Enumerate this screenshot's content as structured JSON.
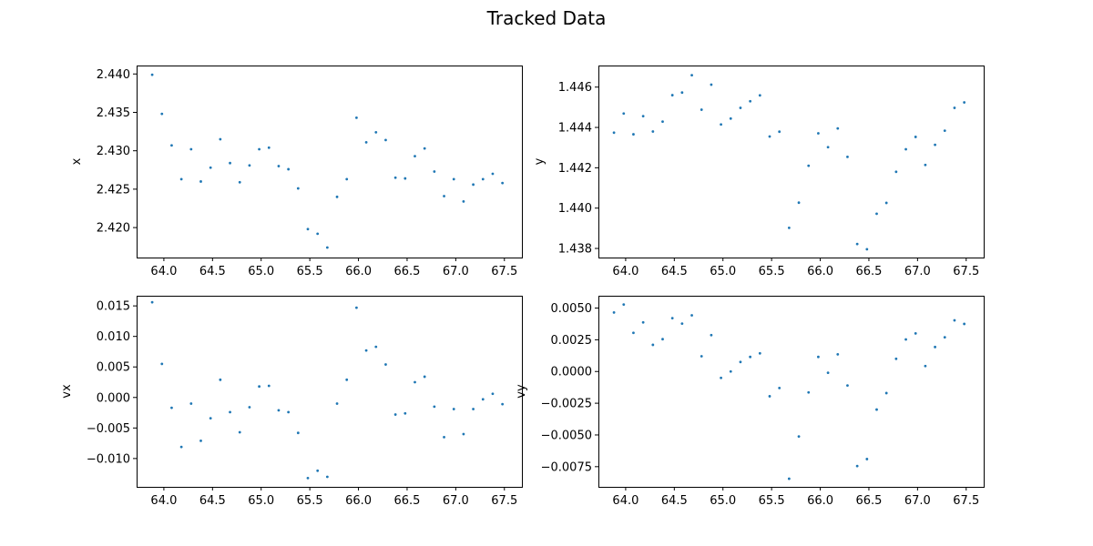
{
  "figure": {
    "title": "Tracked Data"
  },
  "chart_data": [
    {
      "type": "scatter",
      "xlabel": "",
      "ylabel": "x",
      "xlim": [
        63.72,
        67.68
      ],
      "ylim": [
        2.4161,
        2.4411
      ],
      "xticks": [
        64.0,
        64.5,
        65.0,
        65.5,
        66.0,
        66.5,
        67.0,
        67.5
      ],
      "xtick_labels": [
        "64.0",
        "64.5",
        "65.0",
        "65.5",
        "66.0",
        "66.5",
        "67.0",
        "67.5"
      ],
      "yticks": [
        2.42,
        2.425,
        2.43,
        2.435,
        2.44
      ],
      "ytick_labels": [
        "2.420",
        "2.425",
        "2.430",
        "2.435",
        "2.440"
      ],
      "x": [
        63.88,
        63.98,
        64.08,
        64.18,
        64.28,
        64.38,
        64.48,
        64.58,
        64.68,
        64.78,
        64.88,
        64.98,
        65.08,
        65.18,
        65.28,
        65.38,
        65.48,
        65.58,
        65.68,
        65.78,
        65.88,
        65.98,
        66.08,
        66.18,
        66.28,
        66.38,
        66.48,
        66.58,
        66.68,
        66.78,
        66.88,
        66.98,
        67.08,
        67.18,
        67.28,
        67.38,
        67.48
      ],
      "y": [
        2.4399,
        2.4348,
        2.4307,
        2.4263,
        2.4302,
        2.426,
        2.4278,
        2.4315,
        2.4284,
        2.4259,
        2.4281,
        2.4302,
        2.4304,
        2.428,
        2.4276,
        2.4251,
        2.4198,
        2.4192,
        2.4174,
        2.424,
        2.4263,
        2.4343,
        2.4311,
        2.4324,
        2.4314,
        2.4265,
        2.4264,
        2.4293,
        2.4303,
        2.4273,
        2.4241,
        2.4263,
        2.4234,
        2.4256,
        2.4263,
        2.427,
        2.4258
      ]
    },
    {
      "type": "scatter",
      "xlabel": "",
      "ylabel": "y",
      "xlim": [
        63.72,
        67.68
      ],
      "ylim": [
        1.43755,
        1.44707
      ],
      "xticks": [
        64.0,
        64.5,
        65.0,
        65.5,
        66.0,
        66.5,
        67.0,
        67.5
      ],
      "xtick_labels": [
        "64.0",
        "64.5",
        "65.0",
        "65.5",
        "66.0",
        "66.5",
        "67.0",
        "67.5"
      ],
      "yticks": [
        1.438,
        1.44,
        1.442,
        1.444,
        1.446
      ],
      "ytick_labels": [
        "1.438",
        "1.440",
        "1.442",
        "1.444",
        "1.446"
      ],
      "x": [
        63.88,
        63.98,
        64.08,
        64.18,
        64.28,
        64.38,
        64.48,
        64.58,
        64.68,
        64.78,
        64.88,
        64.98,
        65.08,
        65.18,
        65.28,
        65.38,
        65.48,
        65.58,
        65.68,
        65.78,
        65.88,
        65.98,
        66.08,
        66.18,
        66.28,
        66.38,
        66.48,
        66.58,
        66.68,
        66.78,
        66.88,
        66.98,
        67.08,
        67.18,
        67.28,
        67.38,
        67.48
      ],
      "y": [
        1.44374,
        1.44469,
        1.44366,
        1.44456,
        1.4438,
        1.44429,
        1.4456,
        1.44573,
        1.44659,
        1.44488,
        1.44612,
        1.44415,
        1.44444,
        1.44497,
        1.4453,
        1.44559,
        1.44355,
        1.44379,
        1.43902,
        1.44027,
        1.4421,
        1.44371,
        1.44302,
        1.44395,
        1.44254,
        1.43822,
        1.43796,
        1.43972,
        1.44026,
        1.4418,
        1.44292,
        1.44353,
        1.44214,
        1.44314,
        1.44384,
        1.44497,
        1.44524
      ]
    },
    {
      "type": "scatter",
      "xlabel": "",
      "ylabel": "vx",
      "xlim": [
        63.72,
        67.68
      ],
      "ylim": [
        -0.01464,
        0.01666
      ],
      "xticks": [
        64.0,
        64.5,
        65.0,
        65.5,
        66.0,
        66.5,
        67.0,
        67.5
      ],
      "xtick_labels": [
        "64.0",
        "64.5",
        "65.0",
        "65.5",
        "66.0",
        "66.5",
        "67.0",
        "67.5"
      ],
      "yticks": [
        -0.01,
        -0.005,
        0.0,
        0.005,
        0.01,
        0.015
      ],
      "ytick_labels": [
        "−0.010",
        "−0.005",
        "0.000",
        "0.005",
        "0.010",
        "0.015"
      ],
      "x": [
        63.88,
        63.98,
        64.08,
        64.18,
        64.28,
        64.38,
        64.48,
        64.58,
        64.68,
        64.78,
        64.88,
        64.98,
        65.08,
        65.18,
        65.28,
        65.38,
        65.48,
        65.58,
        65.68,
        65.78,
        65.88,
        65.98,
        66.08,
        66.18,
        66.28,
        66.38,
        66.48,
        66.58,
        66.68,
        66.78,
        66.88,
        66.98,
        67.08,
        67.18,
        67.28,
        67.38,
        67.48
      ],
      "y": [
        0.0156,
        0.0055,
        -0.0017,
        -0.0081,
        -0.001,
        -0.0071,
        -0.0034,
        0.0029,
        -0.0024,
        -0.0057,
        -0.0016,
        0.0018,
        0.0019,
        -0.0021,
        -0.0024,
        -0.0058,
        -0.0132,
        -0.012,
        -0.013,
        -0.001,
        0.0029,
        0.0147,
        0.0077,
        0.0083,
        0.0054,
        -0.0028,
        -0.0026,
        0.0025,
        0.0034,
        -0.0015,
        -0.0065,
        -0.0019,
        -0.006,
        -0.0019,
        -0.0003,
        0.0006,
        -0.0011
      ]
    },
    {
      "type": "scatter",
      "xlabel": "",
      "ylabel": "vy",
      "xlim": [
        63.72,
        67.68
      ],
      "ylim": [
        -0.00909,
        0.00597
      ],
      "xticks": [
        64.0,
        64.5,
        65.0,
        65.5,
        66.0,
        66.5,
        67.0,
        67.5
      ],
      "xtick_labels": [
        "64.0",
        "64.5",
        "65.0",
        "65.5",
        "66.0",
        "66.5",
        "67.0",
        "67.5"
      ],
      "yticks": [
        -0.0075,
        -0.005,
        -0.0025,
        0.0,
        0.0025,
        0.005
      ],
      "ytick_labels": [
        "−0.0075",
        "−0.0050",
        "−0.0025",
        "0.0000",
        "0.0025",
        "0.0050"
      ],
      "x": [
        63.88,
        63.98,
        64.08,
        64.18,
        64.28,
        64.38,
        64.48,
        64.58,
        64.68,
        64.78,
        64.88,
        64.98,
        65.08,
        65.18,
        65.28,
        65.38,
        65.48,
        65.58,
        65.68,
        65.78,
        65.88,
        65.98,
        66.08,
        66.18,
        66.28,
        66.38,
        66.48,
        66.58,
        66.68,
        66.78,
        66.88,
        66.98,
        67.08,
        67.18,
        67.28,
        67.38,
        67.48
      ],
      "y": [
        0.00465,
        0.00528,
        0.00305,
        0.00387,
        0.0021,
        0.00255,
        0.0042,
        0.00377,
        0.00443,
        0.0012,
        0.00287,
        -0.0005,
        0.0,
        0.00075,
        0.00115,
        0.00143,
        -0.00195,
        -0.0013,
        -0.00845,
        -0.00512,
        -0.00165,
        0.00115,
        -0.0001,
        0.00135,
        -0.0011,
        -0.00745,
        -0.0069,
        -0.003,
        -0.0017,
        0.001,
        0.00253,
        0.003,
        0.00043,
        0.00193,
        0.0027,
        0.00403,
        0.00375
      ]
    }
  ]
}
